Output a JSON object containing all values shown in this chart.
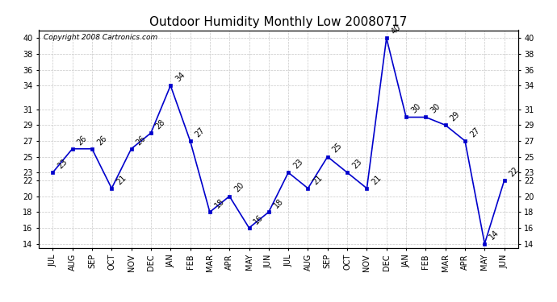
{
  "title": "Outdoor Humidity Monthly Low 20080717",
  "copyright_text": "Copyright 2008 Cartronics.com",
  "categories": [
    "JUL",
    "AUG",
    "SEP",
    "OCT",
    "NOV",
    "DEC",
    "JAN",
    "FEB",
    "MAR",
    "APR",
    "MAY",
    "JUN",
    "JUL",
    "AUG",
    "SEP",
    "OCT",
    "NOV",
    "DEC",
    "JAN",
    "FEB",
    "MAR",
    "APR",
    "MAY",
    "JUN"
  ],
  "values": [
    23,
    26,
    26,
    21,
    26,
    28,
    34,
    27,
    18,
    20,
    16,
    18,
    23,
    21,
    25,
    23,
    21,
    40,
    30,
    30,
    29,
    27,
    14,
    22
  ],
  "yticks": [
    14,
    16,
    18,
    20,
    22,
    23,
    25,
    27,
    29,
    31,
    34,
    36,
    38,
    40
  ],
  "ylim": [
    13.5,
    41.0
  ],
  "line_color": "#0000cc",
  "marker_color": "#0000cc",
  "bg_color": "#ffffff",
  "grid_color": "#c8c8c8",
  "title_fontsize": 11,
  "tick_fontsize": 7,
  "annot_fontsize": 7,
  "copyright_fontsize": 6.5,
  "figwidth": 6.9,
  "figheight": 3.75,
  "dpi": 100
}
